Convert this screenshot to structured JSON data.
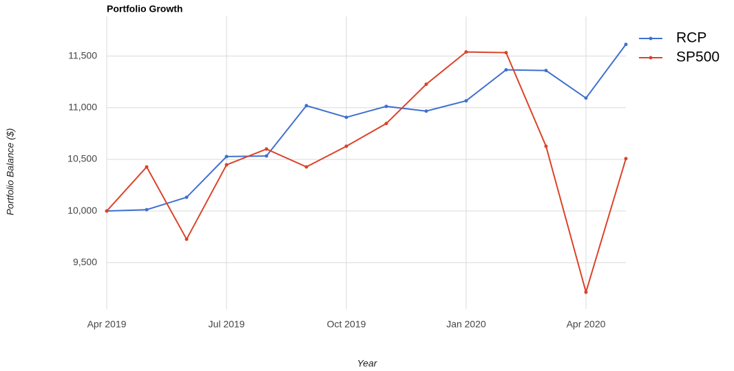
{
  "chart_data": {
    "type": "line",
    "title": "Portfolio Growth",
    "x_label": "Year",
    "y_label": "Portfolio Balance ($)",
    "categories": [
      "Apr 2019",
      null,
      null,
      "Jul 2019",
      null,
      null,
      "Oct 2019",
      null,
      null,
      "Jan 2020",
      null,
      null,
      "Apr 2020",
      null
    ],
    "series": [
      {
        "name": "RCP",
        "color": "#3f6fcf",
        "values": [
          10000,
          10013,
          10133,
          10527,
          10533,
          11020,
          10907,
          11013,
          10967,
          11067,
          11367,
          11360,
          11093,
          11613
        ]
      },
      {
        "name": "SP500",
        "color": "#dc4127",
        "values": [
          10000,
          10427,
          9727,
          10447,
          10600,
          10427,
          10627,
          10847,
          11227,
          11540,
          11533,
          10627,
          9215,
          10507
        ]
      }
    ],
    "ylim": [
      9050,
      11750
    ],
    "yticks": [
      {
        "value": 9500,
        "label": "9,500"
      },
      {
        "value": 10000,
        "label": "10,000"
      },
      {
        "value": 10500,
        "label": "10,500"
      },
      {
        "value": 11000,
        "label": "11,000"
      },
      {
        "value": 11500,
        "label": "11,500"
      }
    ],
    "grid": true,
    "legend": "top-right"
  }
}
